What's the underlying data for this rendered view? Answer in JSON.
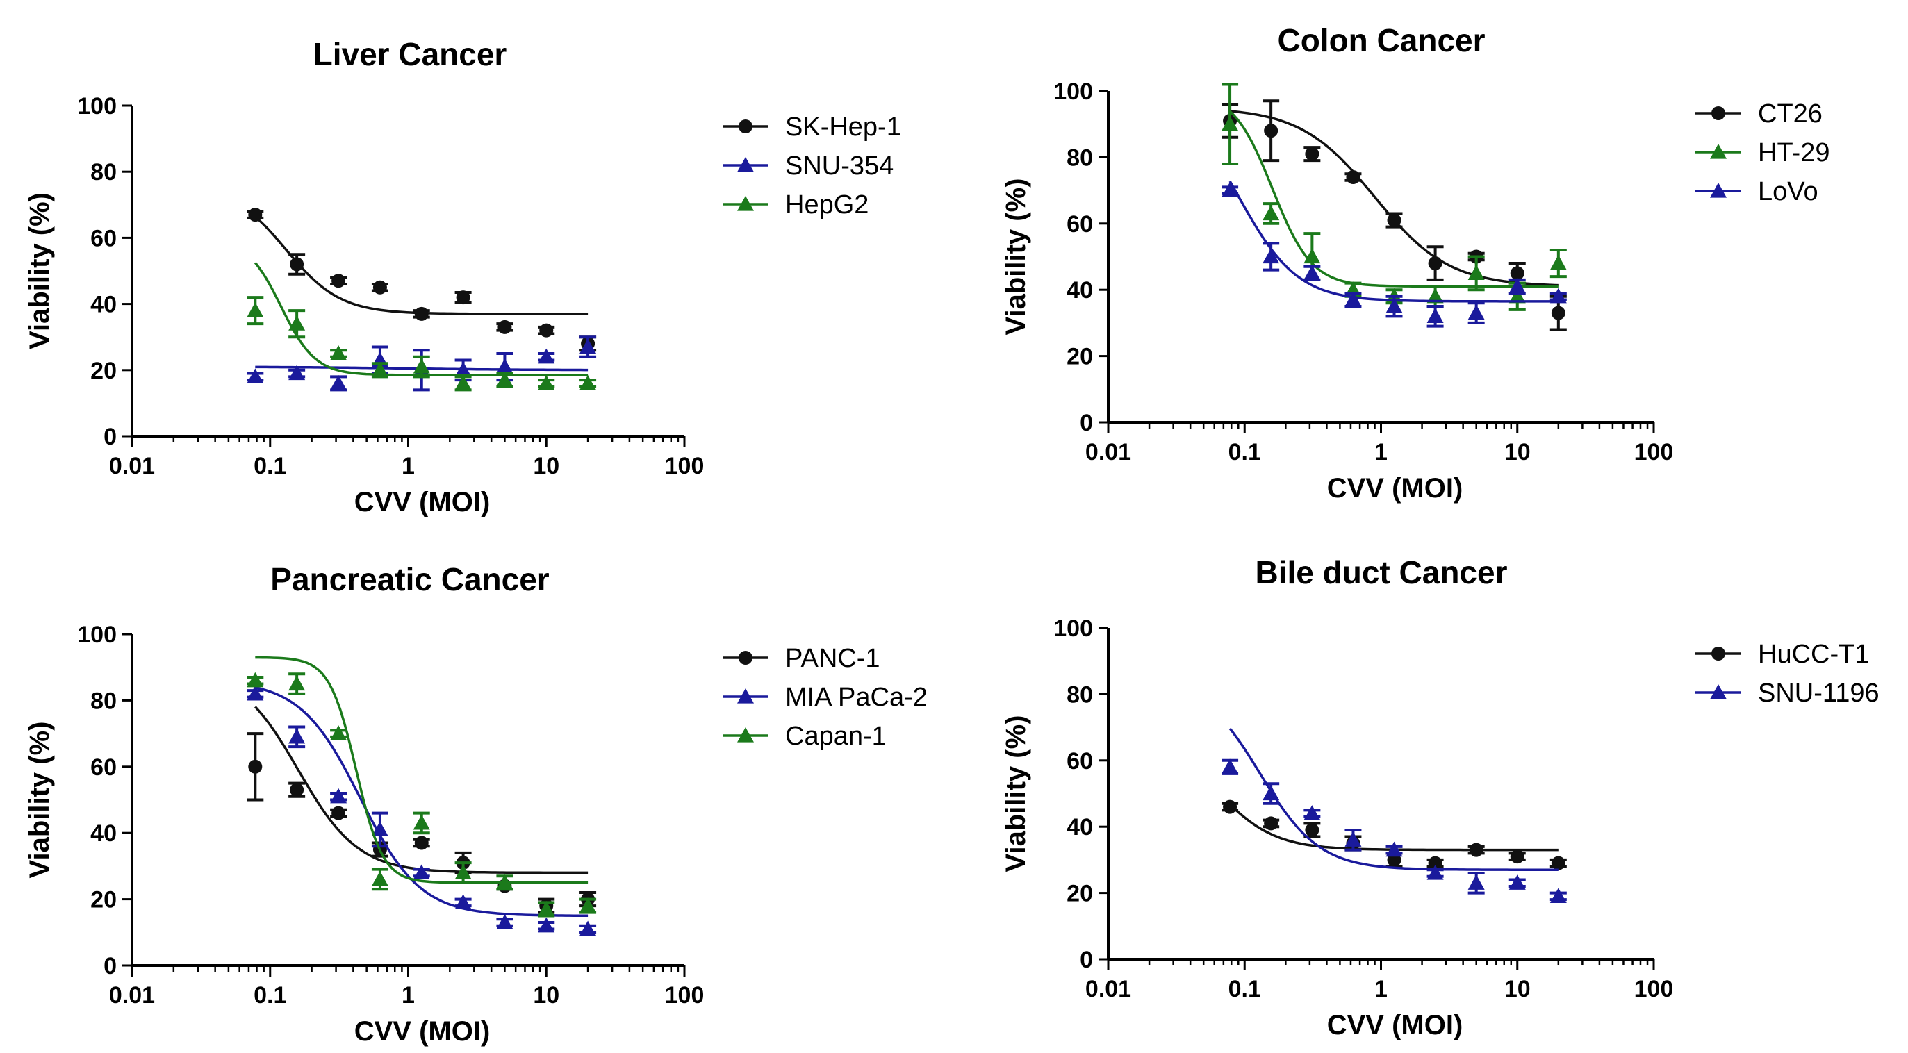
{
  "colors": {
    "black": "#111111",
    "blue": "#1a1a9c",
    "green": "#1b7a1b"
  },
  "chart_data": [
    {
      "type": "scatter",
      "title": "Liver Cancer",
      "xlabel": "CVV (MOI)",
      "ylabel": "Viability (%)",
      "xscale": "log",
      "xlim": [
        0.01,
        100
      ],
      "ylim": [
        0,
        100
      ],
      "xticks": [
        "0.01",
        "0.1",
        "1",
        "10",
        "100"
      ],
      "yticks": [
        "0",
        "20",
        "40",
        "60",
        "80",
        "100"
      ],
      "legend_position": "right",
      "series": [
        {
          "name": "SK-Hep-1",
          "marker": "circle",
          "color": "#111111",
          "x": [
            0.078,
            0.156,
            0.3125,
            0.625,
            1.25,
            2.5,
            5,
            10,
            20
          ],
          "y": [
            67,
            52,
            47,
            45,
            37,
            42,
            33,
            32,
            28
          ],
          "err": [
            1,
            3,
            1,
            1,
            1,
            1.5,
            1,
            1,
            2
          ],
          "fit": {
            "top": 76,
            "bottom": 37,
            "ec50": 0.13,
            "hill": 2.2
          }
        },
        {
          "name": "SNU-354",
          "marker": "triangle",
          "color": "#1a1a9c",
          "x": [
            0.078,
            0.156,
            0.3125,
            0.625,
            1.25,
            2.5,
            5,
            10,
            20
          ],
          "y": [
            18,
            19,
            16,
            23,
            20,
            20,
            21,
            24,
            27
          ],
          "err": [
            1,
            1,
            2,
            4,
            6,
            3,
            4,
            1,
            3
          ],
          "fit": {
            "top": 21,
            "bottom": 20,
            "ec50": 1,
            "hill": 1
          }
        },
        {
          "name": "HepG2",
          "marker": "triangle",
          "color": "#1b7a1b",
          "x": [
            0.078,
            0.156,
            0.3125,
            0.625,
            1.25,
            2.5,
            5,
            10,
            20
          ],
          "y": [
            38,
            34,
            25,
            20,
            21,
            16,
            17,
            16,
            16
          ],
          "err": [
            4,
            4,
            1,
            2,
            3,
            2,
            2,
            1,
            1
          ],
          "fit": {
            "top": 60,
            "bottom": 18.5,
            "ec50": 0.12,
            "hill": 3.5
          }
        }
      ]
    },
    {
      "type": "scatter",
      "title": "Colon Cancer",
      "xlabel": "CVV (MOI)",
      "ylabel": "Viability (%)",
      "xscale": "log",
      "xlim": [
        0.01,
        100
      ],
      "ylim": [
        0,
        100
      ],
      "xticks": [
        "0.01",
        "0.1",
        "1",
        "10",
        "100"
      ],
      "yticks": [
        "0",
        "20",
        "40",
        "60",
        "80",
        "100"
      ],
      "legend_position": "right",
      "series": [
        {
          "name": "CT26",
          "marker": "circle",
          "color": "#111111",
          "x": [
            0.078,
            0.156,
            0.3125,
            0.625,
            1.25,
            2.5,
            5,
            10,
            20
          ],
          "y": [
            91,
            88,
            81,
            74,
            61,
            48,
            50,
            45,
            33
          ],
          "err": [
            5,
            9,
            2,
            1,
            2,
            5,
            1,
            3,
            5
          ],
          "fit": {
            "top": 95,
            "bottom": 41,
            "ec50": 0.9,
            "hill": 1.6
          }
        },
        {
          "name": "HT-29",
          "marker": "triangle",
          "color": "#1b7a1b",
          "x": [
            0.078,
            0.156,
            0.3125,
            0.625,
            1.25,
            2.5,
            5,
            10,
            20
          ],
          "y": [
            90,
            63,
            50,
            40,
            38,
            38,
            45,
            38,
            48
          ],
          "err": [
            12,
            3,
            7,
            2,
            2,
            3,
            5,
            4,
            4
          ],
          "fit": {
            "top": 100,
            "bottom": 41,
            "ec50": 0.16,
            "hill": 3.0
          }
        },
        {
          "name": "LoVo",
          "marker": "triangle",
          "color": "#1a1a9c",
          "x": [
            0.078,
            0.156,
            0.3125,
            0.625,
            1.25,
            2.5,
            5,
            10,
            20
          ],
          "y": [
            70,
            50,
            45,
            37,
            35,
            32,
            33,
            41,
            38
          ],
          "err": [
            1,
            4,
            2,
            2,
            3,
            3,
            3,
            2,
            1
          ],
          "fit": {
            "top": 100,
            "bottom": 36.5,
            "ec50": 0.09,
            "hill": 2.0
          }
        }
      ]
    },
    {
      "type": "scatter",
      "title": "Pancreatic Cancer",
      "xlabel": "CVV (MOI)",
      "ylabel": "Viability (%)",
      "xscale": "log",
      "xlim": [
        0.01,
        100
      ],
      "ylim": [
        0,
        100
      ],
      "xticks": [
        "0.01",
        "0.1",
        "1",
        "10",
        "100"
      ],
      "yticks": [
        "0",
        "20",
        "40",
        "60",
        "80",
        "100"
      ],
      "legend_position": "right",
      "series": [
        {
          "name": "PANC-1",
          "marker": "circle",
          "color": "#111111",
          "x": [
            0.078,
            0.156,
            0.3125,
            0.625,
            1.25,
            2.5,
            5,
            10,
            20
          ],
          "y": [
            60,
            53,
            46,
            35,
            37,
            31,
            24,
            18,
            20
          ],
          "err": [
            10,
            2,
            1,
            2,
            1,
            3,
            1,
            2,
            2
          ],
          "fit": {
            "top": 90,
            "bottom": 28,
            "ec50": 0.16,
            "hill": 2.0
          }
        },
        {
          "name": "MIA PaCa-2",
          "marker": "triangle",
          "color": "#1a1a9c",
          "x": [
            0.078,
            0.156,
            0.3125,
            0.625,
            1.25,
            2.5,
            5,
            10,
            20
          ],
          "y": [
            82,
            69,
            51,
            41,
            28,
            19,
            13,
            12,
            11
          ],
          "err": [
            1,
            3,
            1,
            5,
            1,
            1,
            1,
            1,
            1
          ],
          "fit": {
            "top": 86,
            "bottom": 15,
            "ec50": 0.45,
            "hill": 2.0
          }
        },
        {
          "name": "Capan-1",
          "marker": "triangle",
          "color": "#1b7a1b",
          "x": [
            0.078,
            0.156,
            0.3125,
            0.625,
            1.25,
            2.5,
            5,
            10,
            20
          ],
          "y": [
            86,
            85,
            70,
            26,
            43,
            28,
            25,
            17,
            18
          ],
          "err": [
            1,
            3,
            1,
            3,
            3,
            3,
            2,
            2,
            2
          ],
          "fit": {
            "top": 93,
            "bottom": 25,
            "ec50": 0.42,
            "hill": 4.5
          }
        }
      ]
    },
    {
      "type": "scatter",
      "title": "Bile duct Cancer",
      "xlabel": "CVV (MOI)",
      "ylabel": "Viability (%)",
      "xscale": "log",
      "xlim": [
        0.01,
        100
      ],
      "ylim": [
        0,
        100
      ],
      "xticks": [
        "0.01",
        "0.1",
        "1",
        "10",
        "100"
      ],
      "yticks": [
        "0",
        "20",
        "40",
        "60",
        "80",
        "100"
      ],
      "legend_position": "right",
      "series": [
        {
          "name": "HuCC-T1",
          "marker": "circle",
          "color": "#111111",
          "x": [
            0.078,
            0.156,
            0.3125,
            0.625,
            1.25,
            2.5,
            5,
            10,
            20
          ],
          "y": [
            46,
            41,
            39,
            35,
            30,
            29,
            33,
            31,
            29
          ],
          "err": [
            1,
            1,
            2,
            2,
            2,
            1,
            1,
            1,
            1
          ],
          "fit": {
            "top": 70,
            "bottom": 33,
            "ec50": 0.06,
            "hill": 2.0
          }
        },
        {
          "name": "SNU-1196",
          "marker": "triangle",
          "color": "#1a1a9c",
          "x": [
            0.078,
            0.156,
            0.3125,
            0.625,
            1.25,
            2.5,
            5,
            10,
            20
          ],
          "y": [
            58,
            50,
            44,
            36,
            33,
            26,
            23,
            23,
            19
          ],
          "err": [
            2,
            3,
            1,
            3,
            1,
            1,
            3,
            1,
            1
          ],
          "fit": {
            "top": 85,
            "bottom": 27,
            "ec50": 0.13,
            "hill": 2.0
          }
        }
      ]
    }
  ]
}
